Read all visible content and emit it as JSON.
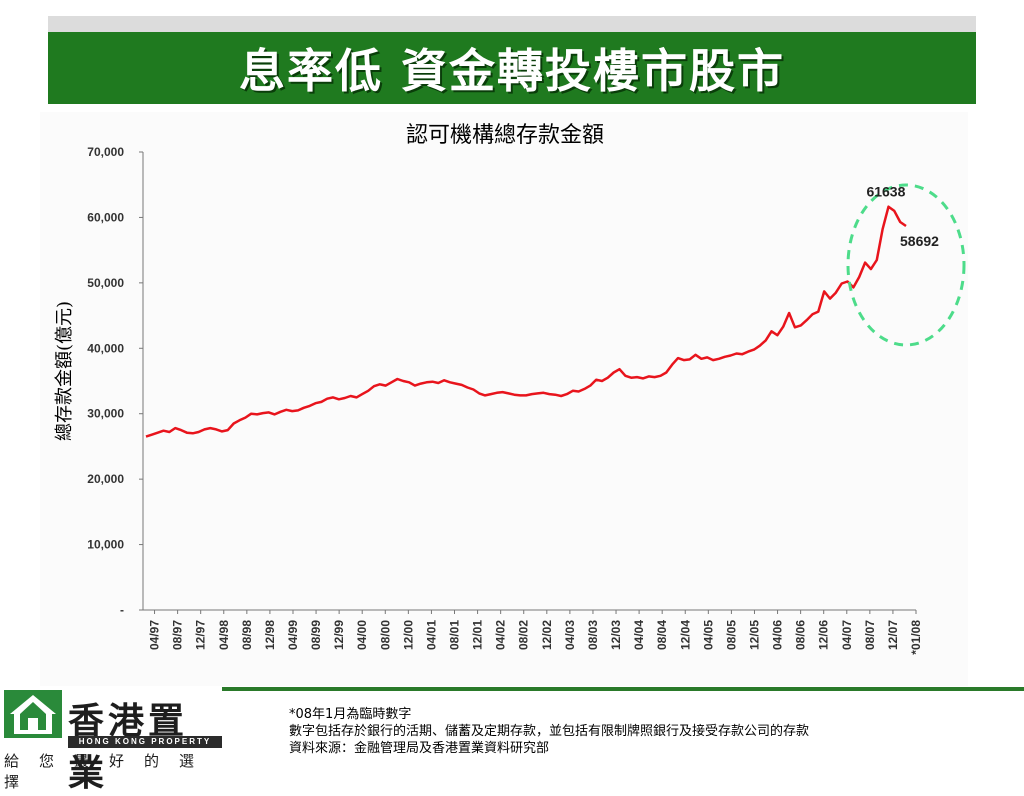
{
  "slide": {
    "title": "息率低  資金轉投樓市股市"
  },
  "chart_data": {
    "type": "line",
    "title": "認可機構總存款金額",
    "ylabel": "總存款金額(億元)",
    "xlabel": "",
    "ylim": [
      0,
      70000
    ],
    "y_ticks": [
      "-",
      "10,000",
      "20,000",
      "30,000",
      "40,000",
      "50,000",
      "60,000",
      "70,000"
    ],
    "x_ticks": [
      "04/97",
      "08/97",
      "12/97",
      "04/98",
      "08/98",
      "12/98",
      "04/99",
      "08/99",
      "12/99",
      "04/00",
      "08/00",
      "12/00",
      "04/01",
      "08/01",
      "12/01",
      "04/02",
      "08/02",
      "12/02",
      "04/03",
      "08/03",
      "12/03",
      "04/04",
      "08/04",
      "12/04",
      "04/05",
      "08/05",
      "12/05",
      "04/06",
      "08/06",
      "12/06",
      "04/07",
      "08/07",
      "12/07",
      "*01/08"
    ],
    "grid": false,
    "series": [
      {
        "color": "#e8141c",
        "values": [
          26500,
          26800,
          27100,
          27400,
          27200,
          27800,
          27500,
          27100,
          27000,
          27200,
          27600,
          27800,
          27600,
          27300,
          27500,
          28500,
          29000,
          29400,
          30000,
          29900,
          30100,
          30200,
          29900,
          30300,
          30600,
          30400,
          30500,
          30900,
          31200,
          31600,
          31800,
          32300,
          32500,
          32200,
          32400,
          32700,
          32500,
          33000,
          33500,
          34200,
          34500,
          34300,
          34800,
          35300,
          35000,
          34800,
          34300,
          34600,
          34800,
          34900,
          34700,
          35100,
          34800,
          34600,
          34400,
          34000,
          33700,
          33100,
          32800,
          33000,
          33200,
          33300,
          33100,
          32900,
          32800,
          32800,
          33000,
          33100,
          33200,
          33000,
          32900,
          32700,
          33000,
          33500,
          33400,
          33800,
          34300,
          35200,
          35000,
          35500,
          36300,
          36800,
          35800,
          35500,
          35600,
          35400,
          35700,
          35600,
          35800,
          36300,
          37500,
          38500,
          38200,
          38300,
          39000,
          38400,
          38600,
          38200,
          38400,
          38700,
          38900,
          39200,
          39100,
          39500,
          39800,
          40400,
          41200,
          42600,
          42000,
          43300,
          45400,
          43200,
          43500,
          44300,
          45200,
          45600,
          48700,
          47600,
          48500,
          49900,
          50200,
          49300,
          50900,
          53100,
          52100,
          53500,
          58200,
          61638,
          61000,
          59300,
          58692
        ]
      }
    ],
    "annotations": [
      {
        "label": "61638"
      },
      {
        "label": "58692"
      }
    ]
  },
  "notes": {
    "line1": "*08年1月為臨時數字",
    "line2": "數字包括存於銀行的活期、儲蓄及定期存款，並包括有限制牌照銀行及接受存款公司的存款",
    "line3": "資料來源：金融管理局及香港置業資料研究部"
  },
  "logo": {
    "chinese": "香港置業",
    "english": "HONG KONG PROPERTY",
    "slogan": "給您最好的選擇"
  },
  "colors": {
    "title_bar": "#1f7a1f",
    "line": "#e8141c",
    "highlight_circle": "#4ddc8a",
    "footer_line": "#2a7a2a"
  }
}
